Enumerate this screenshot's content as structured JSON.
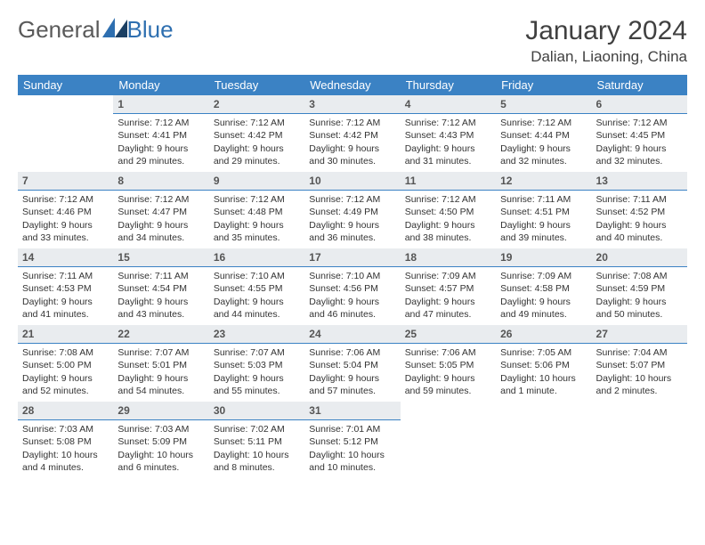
{
  "logo": {
    "text1": "General",
    "text2": "Blue"
  },
  "title": "January 2024",
  "location": "Dalian, Liaoning, China",
  "colors": {
    "header_bg": "#3b82c4",
    "header_text": "#ffffff",
    "daynum_bg": "#e9ecef",
    "daynum_border": "#3b82c4",
    "logo_gray": "#5a5a5a",
    "logo_blue": "#2e6fb0"
  },
  "weekdays": [
    "Sunday",
    "Monday",
    "Tuesday",
    "Wednesday",
    "Thursday",
    "Friday",
    "Saturday"
  ],
  "weeks": [
    [
      null,
      {
        "n": "1",
        "sr": "Sunrise: 7:12 AM",
        "ss": "Sunset: 4:41 PM",
        "d1": "Daylight: 9 hours",
        "d2": "and 29 minutes."
      },
      {
        "n": "2",
        "sr": "Sunrise: 7:12 AM",
        "ss": "Sunset: 4:42 PM",
        "d1": "Daylight: 9 hours",
        "d2": "and 29 minutes."
      },
      {
        "n": "3",
        "sr": "Sunrise: 7:12 AM",
        "ss": "Sunset: 4:42 PM",
        "d1": "Daylight: 9 hours",
        "d2": "and 30 minutes."
      },
      {
        "n": "4",
        "sr": "Sunrise: 7:12 AM",
        "ss": "Sunset: 4:43 PM",
        "d1": "Daylight: 9 hours",
        "d2": "and 31 minutes."
      },
      {
        "n": "5",
        "sr": "Sunrise: 7:12 AM",
        "ss": "Sunset: 4:44 PM",
        "d1": "Daylight: 9 hours",
        "d2": "and 32 minutes."
      },
      {
        "n": "6",
        "sr": "Sunrise: 7:12 AM",
        "ss": "Sunset: 4:45 PM",
        "d1": "Daylight: 9 hours",
        "d2": "and 32 minutes."
      }
    ],
    [
      {
        "n": "7",
        "sr": "Sunrise: 7:12 AM",
        "ss": "Sunset: 4:46 PM",
        "d1": "Daylight: 9 hours",
        "d2": "and 33 minutes."
      },
      {
        "n": "8",
        "sr": "Sunrise: 7:12 AM",
        "ss": "Sunset: 4:47 PM",
        "d1": "Daylight: 9 hours",
        "d2": "and 34 minutes."
      },
      {
        "n": "9",
        "sr": "Sunrise: 7:12 AM",
        "ss": "Sunset: 4:48 PM",
        "d1": "Daylight: 9 hours",
        "d2": "and 35 minutes."
      },
      {
        "n": "10",
        "sr": "Sunrise: 7:12 AM",
        "ss": "Sunset: 4:49 PM",
        "d1": "Daylight: 9 hours",
        "d2": "and 36 minutes."
      },
      {
        "n": "11",
        "sr": "Sunrise: 7:12 AM",
        "ss": "Sunset: 4:50 PM",
        "d1": "Daylight: 9 hours",
        "d2": "and 38 minutes."
      },
      {
        "n": "12",
        "sr": "Sunrise: 7:11 AM",
        "ss": "Sunset: 4:51 PM",
        "d1": "Daylight: 9 hours",
        "d2": "and 39 minutes."
      },
      {
        "n": "13",
        "sr": "Sunrise: 7:11 AM",
        "ss": "Sunset: 4:52 PM",
        "d1": "Daylight: 9 hours",
        "d2": "and 40 minutes."
      }
    ],
    [
      {
        "n": "14",
        "sr": "Sunrise: 7:11 AM",
        "ss": "Sunset: 4:53 PM",
        "d1": "Daylight: 9 hours",
        "d2": "and 41 minutes."
      },
      {
        "n": "15",
        "sr": "Sunrise: 7:11 AM",
        "ss": "Sunset: 4:54 PM",
        "d1": "Daylight: 9 hours",
        "d2": "and 43 minutes."
      },
      {
        "n": "16",
        "sr": "Sunrise: 7:10 AM",
        "ss": "Sunset: 4:55 PM",
        "d1": "Daylight: 9 hours",
        "d2": "and 44 minutes."
      },
      {
        "n": "17",
        "sr": "Sunrise: 7:10 AM",
        "ss": "Sunset: 4:56 PM",
        "d1": "Daylight: 9 hours",
        "d2": "and 46 minutes."
      },
      {
        "n": "18",
        "sr": "Sunrise: 7:09 AM",
        "ss": "Sunset: 4:57 PM",
        "d1": "Daylight: 9 hours",
        "d2": "and 47 minutes."
      },
      {
        "n": "19",
        "sr": "Sunrise: 7:09 AM",
        "ss": "Sunset: 4:58 PM",
        "d1": "Daylight: 9 hours",
        "d2": "and 49 minutes."
      },
      {
        "n": "20",
        "sr": "Sunrise: 7:08 AM",
        "ss": "Sunset: 4:59 PM",
        "d1": "Daylight: 9 hours",
        "d2": "and 50 minutes."
      }
    ],
    [
      {
        "n": "21",
        "sr": "Sunrise: 7:08 AM",
        "ss": "Sunset: 5:00 PM",
        "d1": "Daylight: 9 hours",
        "d2": "and 52 minutes."
      },
      {
        "n": "22",
        "sr": "Sunrise: 7:07 AM",
        "ss": "Sunset: 5:01 PM",
        "d1": "Daylight: 9 hours",
        "d2": "and 54 minutes."
      },
      {
        "n": "23",
        "sr": "Sunrise: 7:07 AM",
        "ss": "Sunset: 5:03 PM",
        "d1": "Daylight: 9 hours",
        "d2": "and 55 minutes."
      },
      {
        "n": "24",
        "sr": "Sunrise: 7:06 AM",
        "ss": "Sunset: 5:04 PM",
        "d1": "Daylight: 9 hours",
        "d2": "and 57 minutes."
      },
      {
        "n": "25",
        "sr": "Sunrise: 7:06 AM",
        "ss": "Sunset: 5:05 PM",
        "d1": "Daylight: 9 hours",
        "d2": "and 59 minutes."
      },
      {
        "n": "26",
        "sr": "Sunrise: 7:05 AM",
        "ss": "Sunset: 5:06 PM",
        "d1": "Daylight: 10 hours",
        "d2": "and 1 minute."
      },
      {
        "n": "27",
        "sr": "Sunrise: 7:04 AM",
        "ss": "Sunset: 5:07 PM",
        "d1": "Daylight: 10 hours",
        "d2": "and 2 minutes."
      }
    ],
    [
      {
        "n": "28",
        "sr": "Sunrise: 7:03 AM",
        "ss": "Sunset: 5:08 PM",
        "d1": "Daylight: 10 hours",
        "d2": "and 4 minutes."
      },
      {
        "n": "29",
        "sr": "Sunrise: 7:03 AM",
        "ss": "Sunset: 5:09 PM",
        "d1": "Daylight: 10 hours",
        "d2": "and 6 minutes."
      },
      {
        "n": "30",
        "sr": "Sunrise: 7:02 AM",
        "ss": "Sunset: 5:11 PM",
        "d1": "Daylight: 10 hours",
        "d2": "and 8 minutes."
      },
      {
        "n": "31",
        "sr": "Sunrise: 7:01 AM",
        "ss": "Sunset: 5:12 PM",
        "d1": "Daylight: 10 hours",
        "d2": "and 10 minutes."
      },
      null,
      null,
      null
    ]
  ]
}
